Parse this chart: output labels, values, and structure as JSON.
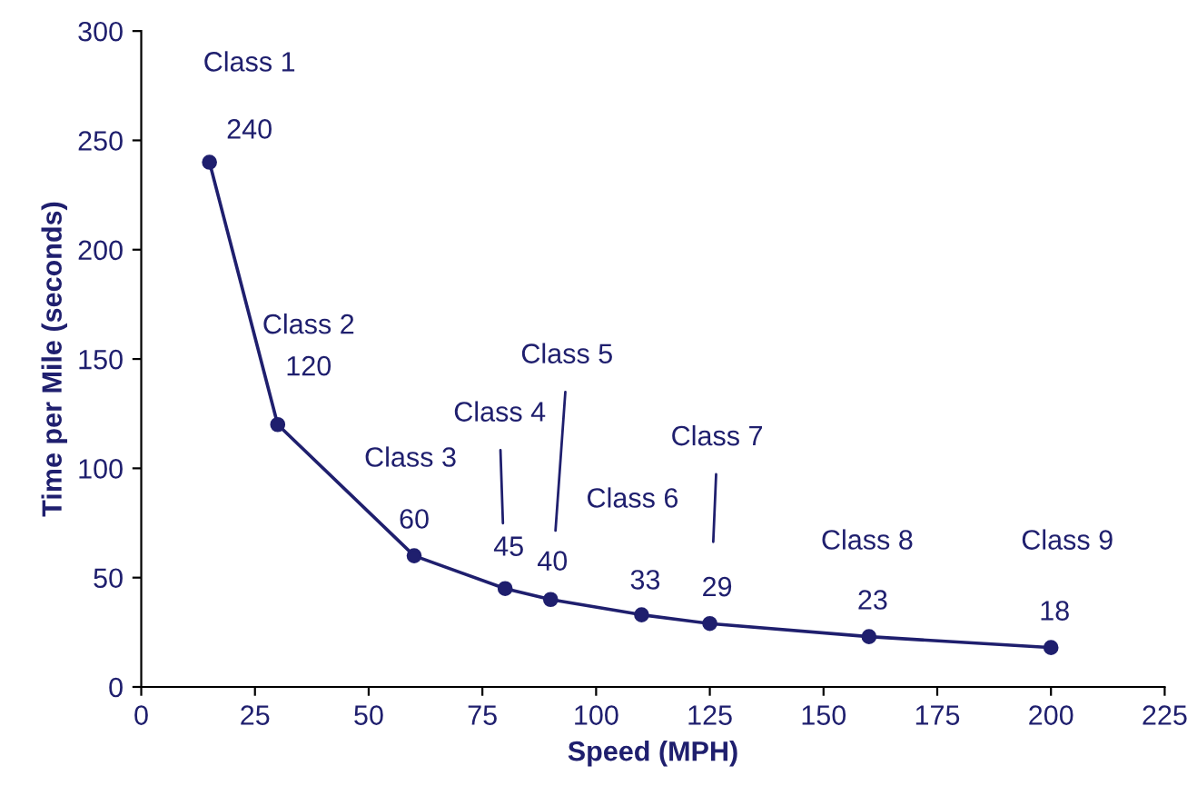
{
  "chart_data": {
    "type": "line",
    "xlabel": "Speed (MPH)",
    "ylabel": "Time per Mile (seconds)",
    "x": [
      15,
      30,
      60,
      80,
      90,
      110,
      125,
      160,
      200
    ],
    "series": [
      {
        "color": "#1f1f6e",
        "values": [
          240,
          120,
          60,
          45,
          40,
          33,
          29,
          23,
          18
        ]
      }
    ],
    "marker": "circle",
    "line_style": "solid",
    "data_labels": true,
    "grid": false,
    "legend": false,
    "xlim": [
      0,
      225
    ],
    "xticks": [
      0,
      25,
      50,
      75,
      100,
      125,
      150,
      175,
      200,
      225
    ],
    "ylim": [
      0,
      300
    ],
    "yticks": [
      0,
      50,
      100,
      150,
      200,
      250,
      300
    ],
    "annotations": [
      "Class 1",
      "Class 2",
      "Class 3",
      "Class 4",
      "Class 5",
      "Class 6",
      "Class 7",
      "Class 8",
      "Class 9"
    ]
  }
}
